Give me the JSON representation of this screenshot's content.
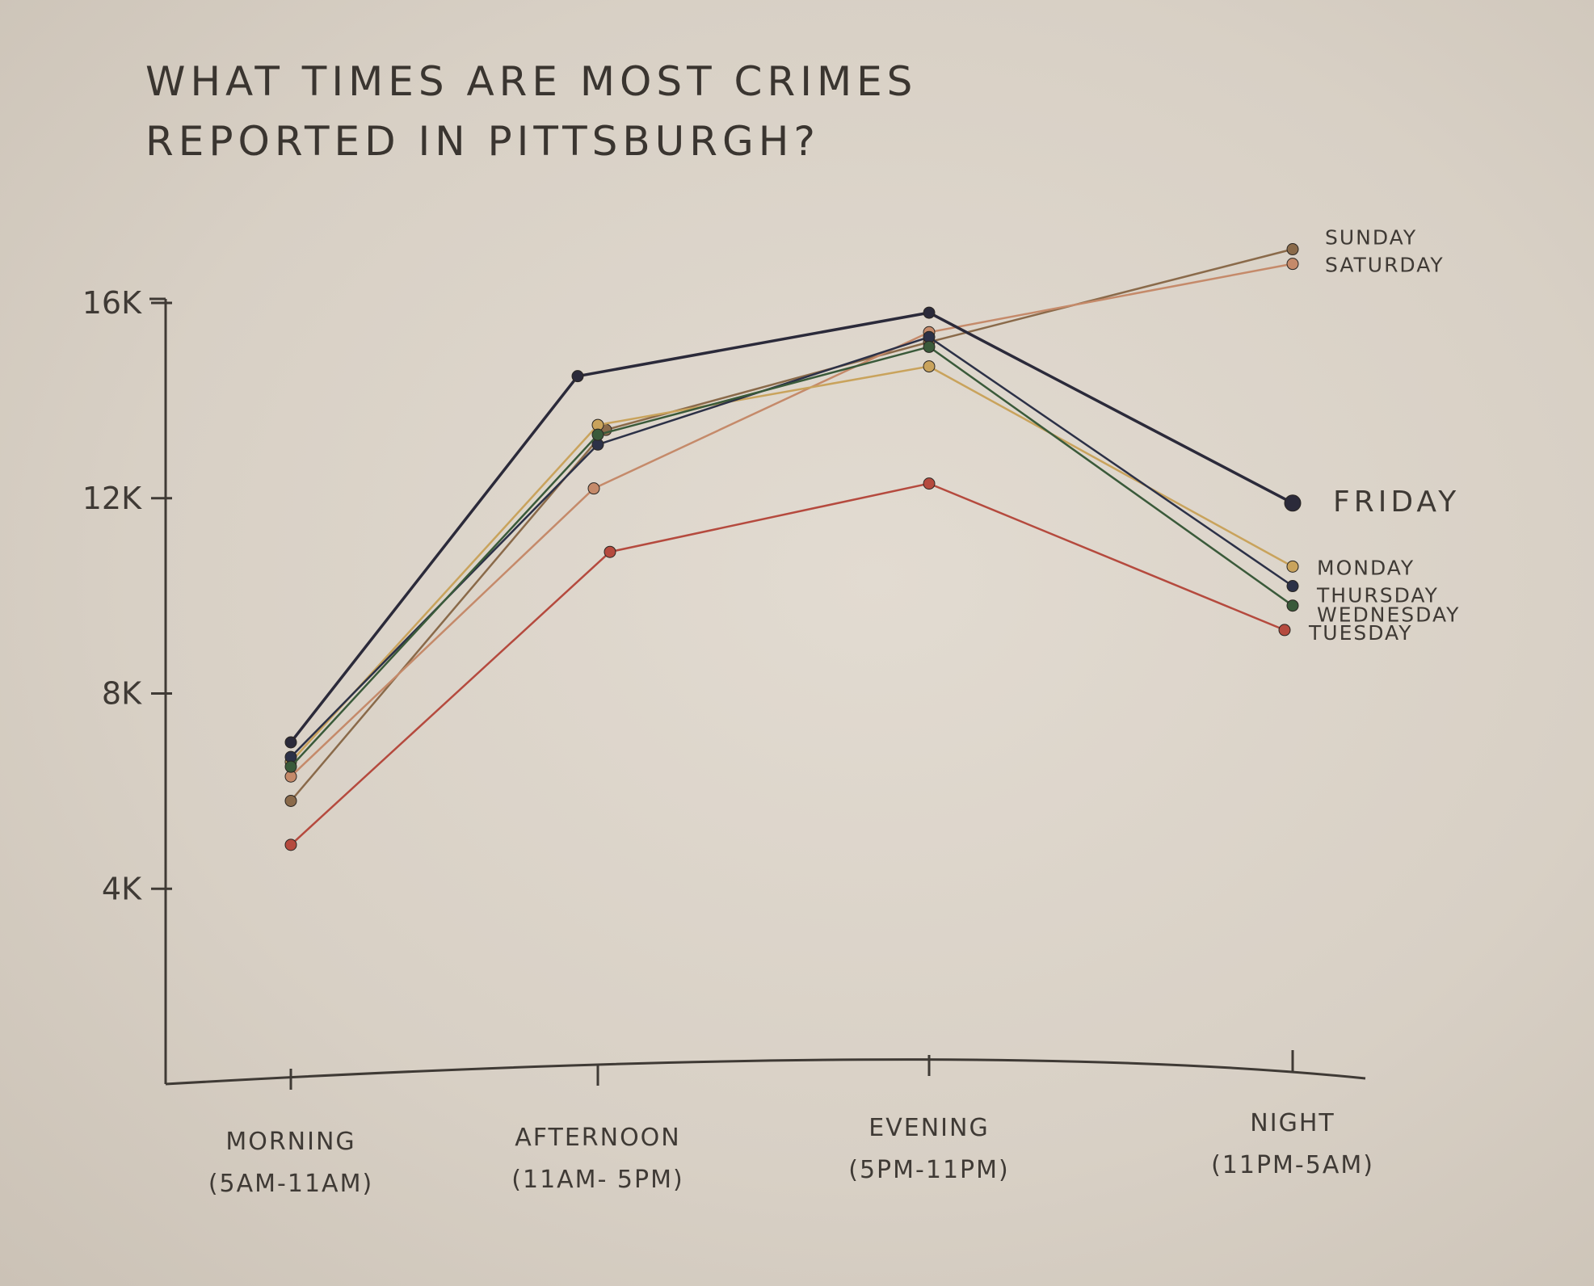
{
  "chart_data": {
    "type": "line",
    "title_lines": [
      "WHAT TIMES ARE MOST CRIMES",
      "REPORTED IN PITTSBURGH?"
    ],
    "xlabel": "",
    "ylabel": "",
    "categories": [
      {
        "name": "MORNING",
        "range": "(5AM-11AM)"
      },
      {
        "name": "AFTERNOON",
        "range": "(11AM- 5PM)"
      },
      {
        "name": "EVENING",
        "range": "(5PM-11PM)"
      },
      {
        "name": "NIGHT",
        "range": "(11PM-5AM)"
      }
    ],
    "yticks": [
      {
        "value": 4000,
        "label": "4K"
      },
      {
        "value": 8000,
        "label": "8K"
      },
      {
        "value": 12000,
        "label": "12K"
      },
      {
        "value": 16000,
        "label": "16K"
      }
    ],
    "ylim": [
      0,
      16000
    ],
    "grid": false,
    "series": [
      {
        "name": "SUNDAY",
        "color": "#8a6a4a",
        "values": [
          5800,
          13400,
          15200,
          17100
        ]
      },
      {
        "name": "SATURDAY",
        "color": "#c58a6a",
        "values": [
          6300,
          12200,
          15400,
          16800
        ]
      },
      {
        "name": "FRIDAY",
        "color": "#2b2a3a",
        "values": [
          7000,
          14500,
          15800,
          11900
        ]
      },
      {
        "name": "MONDAY",
        "color": "#c9a35c",
        "values": [
          6600,
          13500,
          14700,
          10600
        ]
      },
      {
        "name": "THURSDAY",
        "color": "#2c3147",
        "values": [
          6700,
          13100,
          15300,
          10200
        ]
      },
      {
        "name": "WEDNESDAY",
        "color": "#3a5a3a",
        "values": [
          6500,
          13300,
          15100,
          9800
        ]
      },
      {
        "name": "TUESDAY",
        "color": "#b54a3e",
        "values": [
          4900,
          10900,
          12300,
          9300
        ]
      }
    ]
  }
}
